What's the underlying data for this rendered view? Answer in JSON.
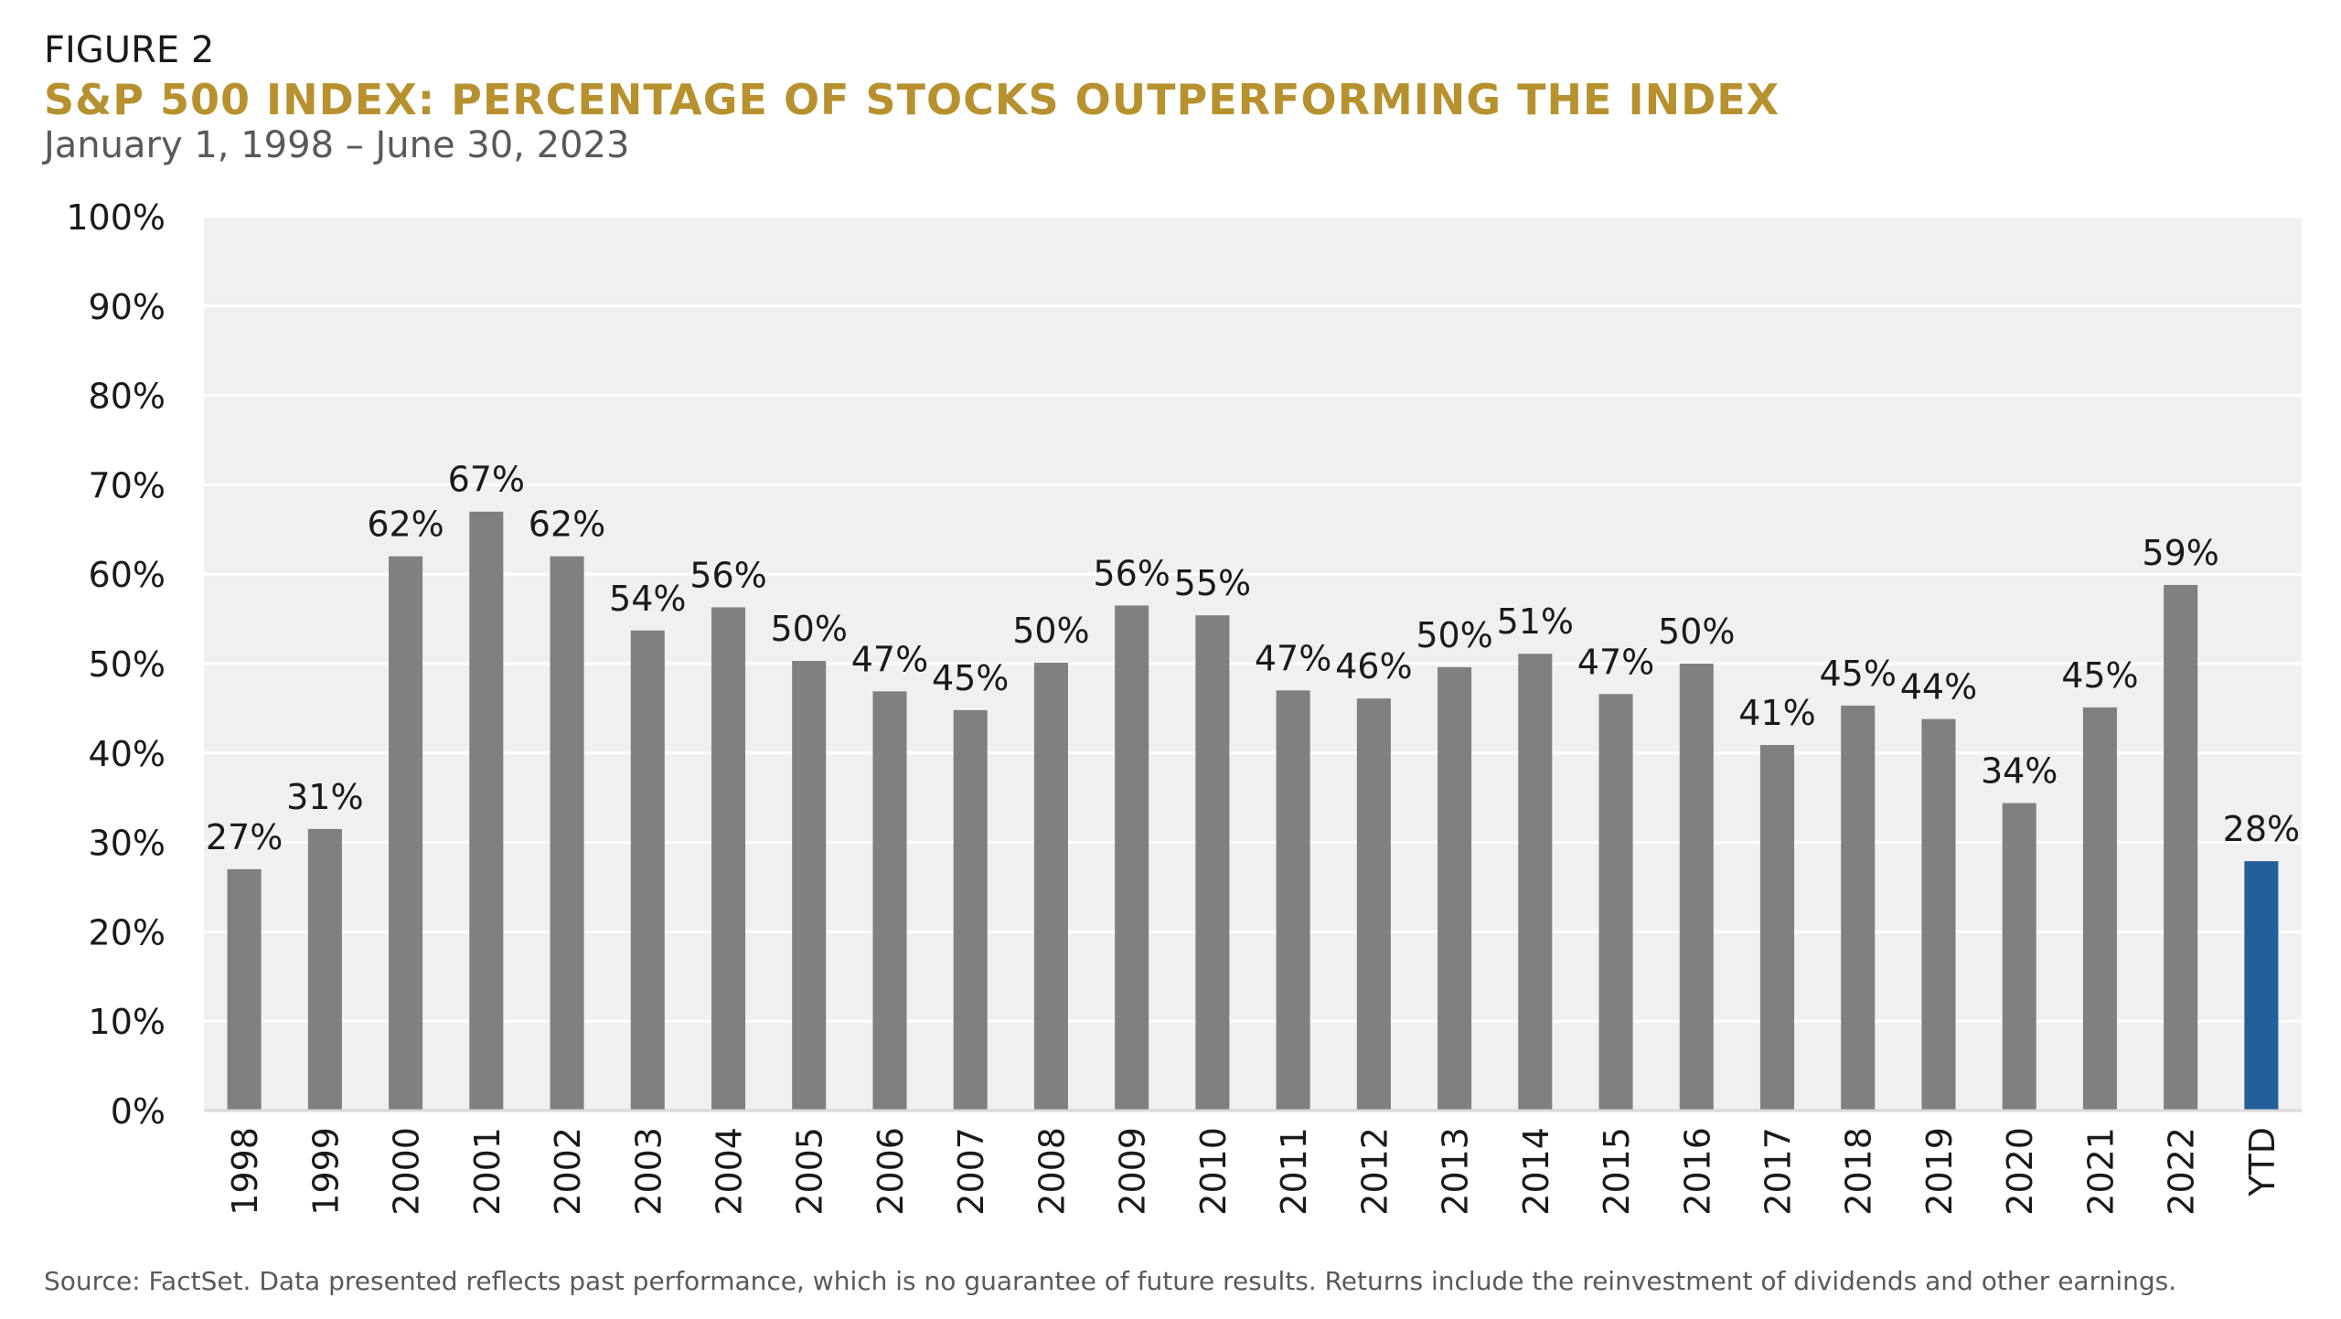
{
  "figure_label": "FIGURE 2",
  "title": "S&P 500 INDEX: PERCENTAGE OF STOCKS OUTPERFORMING THE INDEX",
  "subtitle": "January 1, 1998 – June 30, 2023",
  "source": "Source: FactSet. Data presented reflects past performance, which is no guarantee of future results. Returns include the reinvestment of dividends and other earnings.",
  "colors": {
    "bar": "#808080",
    "highlight_bar": "#23609b",
    "plot_background": "#f0f0f0",
    "gridline": "#ffffff",
    "title": "#b8912f"
  },
  "chart_data": {
    "type": "bar",
    "title": "S&P 500 INDEX: PERCENTAGE OF STOCKS OUTPERFORMING THE INDEX",
    "xlabel": "",
    "ylabel": "",
    "ylim": [
      0,
      100
    ],
    "yticks": [
      0,
      10,
      20,
      30,
      40,
      50,
      60,
      70,
      80,
      90,
      100
    ],
    "ytick_labels": [
      "0%",
      "10%",
      "20%",
      "30%",
      "40%",
      "50%",
      "60%",
      "70%",
      "80%",
      "90%",
      "100%"
    ],
    "categories": [
      "1998",
      "1999",
      "2000",
      "2001",
      "2002",
      "2003",
      "2004",
      "2005",
      "2006",
      "2007",
      "2008",
      "2009",
      "2010",
      "2011",
      "2012",
      "2013",
      "2014",
      "2015",
      "2016",
      "2017",
      "2018",
      "2019",
      "2020",
      "2021",
      "2022",
      "YTD"
    ],
    "values": [
      27,
      31.5,
      62,
      67,
      62,
      53.7,
      56.3,
      50.3,
      46.9,
      44.8,
      50.1,
      56.5,
      55.4,
      47,
      46.1,
      49.6,
      51.1,
      46.6,
      50,
      40.9,
      45.3,
      43.8,
      34.4,
      45.1,
      58.8,
      27.9
    ],
    "data_labels": [
      "27%",
      "31%",
      "62%",
      "67%",
      "62%",
      "54%",
      "56%",
      "50%",
      "47%",
      "45%",
      "50%",
      "56%",
      "55%",
      "47%",
      "46%",
      "50%",
      "51%",
      "47%",
      "50%",
      "41%",
      "45%",
      "44%",
      "34%",
      "45%",
      "59%",
      "28%"
    ],
    "highlighted_category": "YTD",
    "grid": true,
    "legend": false
  }
}
